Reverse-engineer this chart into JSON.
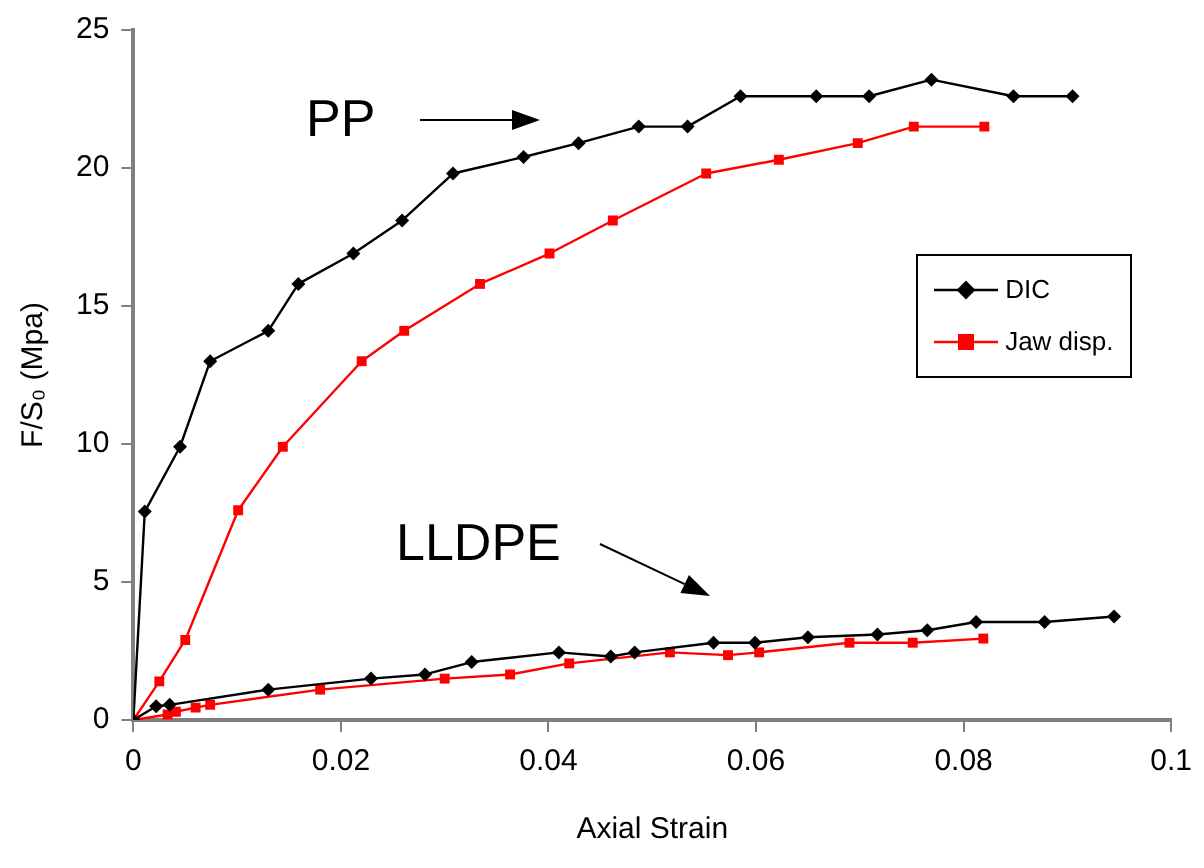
{
  "chart_data": {
    "type": "line",
    "xlabel": "Axial Strain",
    "ylabel": "F/S₀ (Mpa)",
    "xlim": [
      0,
      0.1
    ],
    "xticks": [
      0,
      0.02,
      0.04,
      0.06,
      0.08,
      0.1
    ],
    "ylim": [
      0,
      25
    ],
    "yticks": [
      0,
      5,
      10,
      15,
      20,
      25
    ],
    "grid": false,
    "legend": "right",
    "line_style": "solid",
    "series": [
      {
        "name": "DIC",
        "color": "#000000",
        "marker": "diamond",
        "x": [
          0,
          0.0011,
          0.0045,
          0.0074,
          0.013,
          0.0159,
          0.0212,
          0.0259,
          0.0308,
          0.0376,
          0.0429,
          0.0487,
          0.0534,
          0.0585,
          0.0658,
          0.0709,
          0.0769,
          0.0848,
          0.0905
        ],
        "values": [
          0,
          7.55,
          9.9,
          13.0,
          14.1,
          15.8,
          16.9,
          18.1,
          19.8,
          20.4,
          20.9,
          21.5,
          21.5,
          22.6,
          22.6,
          22.6,
          23.2,
          22.6,
          22.6
        ]
      },
      {
        "name": "Jaw disp.",
        "color": "#ff0000",
        "marker": "square",
        "x": [
          0,
          0.0025,
          0.005,
          0.0101,
          0.0144,
          0.022,
          0.0261,
          0.0334,
          0.0401,
          0.0462,
          0.0552,
          0.0622,
          0.0698,
          0.0752,
          0.082
        ],
        "values": [
          0,
          1.4,
          2.9,
          7.6,
          9.9,
          13.0,
          14.1,
          15.8,
          16.9,
          18.1,
          19.8,
          20.3,
          20.9,
          21.5,
          21.5
        ]
      },
      {
        "color": "#000000",
        "marker": "diamond",
        "x": [
          0,
          0.0022,
          0.0035,
          0.013,
          0.0229,
          0.0281,
          0.0326,
          0.041,
          0.046,
          0.0483,
          0.0559,
          0.0599,
          0.065,
          0.0717,
          0.0765,
          0.0812,
          0.0878,
          0.0945
        ],
        "values": [
          0,
          0.5,
          0.55,
          1.1,
          1.5,
          1.65,
          2.1,
          2.45,
          2.3,
          2.45,
          2.8,
          2.8,
          3.0,
          3.1,
          3.25,
          3.55,
          3.55,
          3.75
        ]
      },
      {
        "color": "#ff0000",
        "marker": "square",
        "x": [
          0,
          0.0033,
          0.0041,
          0.006,
          0.0074,
          0.018,
          0.03,
          0.0363,
          0.042,
          0.0517,
          0.0573,
          0.0603,
          0.069,
          0.0751,
          0.0819
        ],
        "values": [
          0,
          0.2,
          0.3,
          0.45,
          0.55,
          1.1,
          1.5,
          1.65,
          2.05,
          2.45,
          2.35,
          2.45,
          2.8,
          2.8,
          2.95
        ]
      }
    ],
    "annotations": [
      "PP",
      "LLDPE"
    ]
  }
}
